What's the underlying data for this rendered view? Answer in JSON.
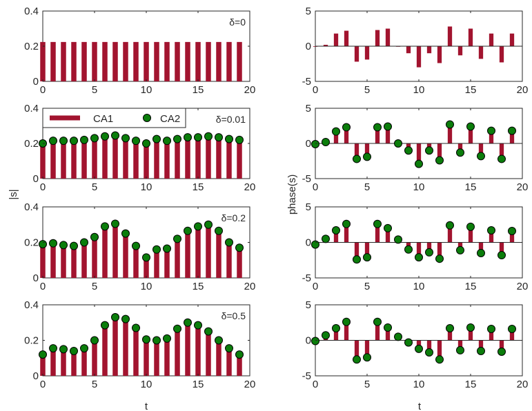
{
  "figure": {
    "left_ylabel": "|s|",
    "right_ylabel": "phase(s)",
    "xlabel": "t",
    "legend": {
      "labels": [
        "CA1",
        "CA2"
      ]
    },
    "colors": {
      "bar": "#A2142F",
      "marker_fill": "#0B7D0B",
      "marker_edge": "#000000",
      "axis": "#262626"
    }
  },
  "chart_data": [
    {
      "type": "bar",
      "panel": "magnitude-delta-0",
      "annotation": "δ=0",
      "x": [
        0,
        1,
        2,
        3,
        4,
        5,
        6,
        7,
        8,
        9,
        10,
        11,
        12,
        13,
        14,
        15,
        16,
        17,
        18,
        19
      ],
      "xlim": [
        0,
        20
      ],
      "ylim": [
        0,
        0.4
      ],
      "xticks": [
        0,
        5,
        10,
        15,
        20
      ],
      "yticks": [
        0,
        0.2,
        0.4
      ],
      "series": [
        {
          "name": "CA1",
          "kind": "bar",
          "values": [
            0.224,
            0.224,
            0.224,
            0.224,
            0.224,
            0.224,
            0.224,
            0.224,
            0.224,
            0.224,
            0.224,
            0.224,
            0.224,
            0.224,
            0.224,
            0.224,
            0.224,
            0.224,
            0.224,
            0.224
          ]
        }
      ]
    },
    {
      "type": "bar",
      "panel": "phase-delta-0",
      "x": [
        0,
        1,
        2,
        3,
        4,
        5,
        6,
        7,
        8,
        9,
        10,
        11,
        12,
        13,
        14,
        15,
        16,
        17,
        18,
        19
      ],
      "xlim": [
        0,
        20
      ],
      "ylim": [
        -5,
        5
      ],
      "xticks": [
        0,
        5,
        10,
        15,
        20
      ],
      "yticks": [
        -5,
        0,
        5
      ],
      "series": [
        {
          "name": "CA1",
          "kind": "bar",
          "values": [
            0,
            0.2,
            1.8,
            2.2,
            -2.2,
            -1.9,
            2.3,
            2.5,
            0,
            -1,
            -3,
            -1,
            -2.4,
            2.8,
            -1.3,
            2.5,
            -1.8,
            1.8,
            -2.3,
            1.8
          ]
        }
      ]
    },
    {
      "type": "bar",
      "panel": "magnitude-delta-0.01",
      "annotation": "δ=0.01",
      "x": [
        0,
        1,
        2,
        3,
        4,
        5,
        6,
        7,
        8,
        9,
        10,
        11,
        12,
        13,
        14,
        15,
        16,
        17,
        18,
        19
      ],
      "xlim": [
        0,
        20
      ],
      "ylim": [
        0,
        0.4
      ],
      "xticks": [
        0,
        5,
        10,
        15,
        20
      ],
      "yticks": [
        0,
        0.2,
        0.4
      ],
      "series": [
        {
          "name": "CA1",
          "kind": "bar",
          "values": [
            0.2,
            0.215,
            0.215,
            0.215,
            0.22,
            0.23,
            0.24,
            0.245,
            0.23,
            0.215,
            0.2,
            0.225,
            0.215,
            0.225,
            0.235,
            0.235,
            0.24,
            0.235,
            0.225,
            0.22
          ]
        },
        {
          "name": "CA2",
          "kind": "marker",
          "values": [
            0.2,
            0.215,
            0.215,
            0.215,
            0.22,
            0.23,
            0.24,
            0.245,
            0.23,
            0.215,
            0.2,
            0.225,
            0.215,
            0.225,
            0.235,
            0.235,
            0.24,
            0.235,
            0.225,
            0.22
          ]
        }
      ]
    },
    {
      "type": "bar",
      "panel": "phase-delta-0.01",
      "x": [
        0,
        1,
        2,
        3,
        4,
        5,
        6,
        7,
        8,
        9,
        10,
        11,
        12,
        13,
        14,
        15,
        16,
        17,
        18,
        19
      ],
      "xlim": [
        0,
        20
      ],
      "ylim": [
        -5,
        5
      ],
      "xticks": [
        0,
        5,
        10,
        15,
        20
      ],
      "yticks": [
        -5,
        0,
        5
      ],
      "series": [
        {
          "name": "CA1",
          "kind": "bar",
          "values": [
            -0.1,
            0.2,
            1.7,
            2.3,
            -2.2,
            -1.9,
            2.3,
            2.4,
            0,
            -1,
            -2.9,
            -1,
            -2.4,
            2.7,
            -1.3,
            2.4,
            -1.8,
            1.8,
            -2.2,
            1.8
          ]
        },
        {
          "name": "CA2",
          "kind": "marker",
          "values": [
            -0.1,
            0.2,
            1.7,
            2.3,
            -2.2,
            -1.9,
            2.3,
            2.4,
            0,
            -1,
            -2.9,
            -1,
            -2.4,
            2.7,
            -1.3,
            2.4,
            -1.8,
            1.8,
            -2.2,
            1.8
          ]
        }
      ]
    },
    {
      "type": "bar",
      "panel": "magnitude-delta-0.2",
      "annotation": "δ=0.2",
      "x": [
        0,
        1,
        2,
        3,
        4,
        5,
        6,
        7,
        8,
        9,
        10,
        11,
        12,
        13,
        14,
        15,
        16,
        17,
        18,
        19
      ],
      "xlim": [
        0,
        20
      ],
      "ylim": [
        0,
        0.4
      ],
      "xticks": [
        0,
        5,
        10,
        15,
        20
      ],
      "yticks": [
        0,
        0.2,
        0.4
      ],
      "series": [
        {
          "name": "CA1",
          "kind": "bar",
          "values": [
            0.19,
            0.195,
            0.185,
            0.18,
            0.2,
            0.23,
            0.29,
            0.305,
            0.25,
            0.18,
            0.115,
            0.16,
            0.165,
            0.22,
            0.265,
            0.29,
            0.3,
            0.265,
            0.2,
            0.17
          ]
        },
        {
          "name": "CA2",
          "kind": "marker",
          "values": [
            0.19,
            0.195,
            0.185,
            0.18,
            0.2,
            0.23,
            0.29,
            0.305,
            0.25,
            0.18,
            0.115,
            0.16,
            0.165,
            0.22,
            0.265,
            0.29,
            0.3,
            0.265,
            0.2,
            0.17
          ]
        }
      ]
    },
    {
      "type": "bar",
      "panel": "phase-delta-0.2",
      "x": [
        0,
        1,
        2,
        3,
        4,
        5,
        6,
        7,
        8,
        9,
        10,
        11,
        12,
        13,
        14,
        15,
        16,
        17,
        18,
        19
      ],
      "xlim": [
        0,
        20
      ],
      "ylim": [
        -5,
        5
      ],
      "xticks": [
        0,
        5,
        10,
        15,
        20
      ],
      "yticks": [
        -5,
        0,
        5
      ],
      "series": [
        {
          "name": "CA1",
          "kind": "bar",
          "values": [
            -0.3,
            0.5,
            1.7,
            2.6,
            -2.4,
            -2.1,
            2.6,
            2,
            0.4,
            -1,
            -2.1,
            -1.4,
            -2.3,
            2.4,
            -1.1,
            2.2,
            -1.5,
            1.7,
            -1.8,
            1.6
          ]
        },
        {
          "name": "CA2",
          "kind": "marker",
          "values": [
            -0.3,
            0.5,
            1.7,
            2.6,
            -2.4,
            -2.1,
            2.6,
            2,
            0.4,
            -1,
            -2.1,
            -1.4,
            -2.3,
            2.4,
            -1.1,
            2.2,
            -1.5,
            1.7,
            -1.8,
            1.6
          ]
        }
      ]
    },
    {
      "type": "bar",
      "panel": "magnitude-delta-0.5",
      "annotation": "δ=0.5",
      "x": [
        0,
        1,
        2,
        3,
        4,
        5,
        6,
        7,
        8,
        9,
        10,
        11,
        12,
        13,
        14,
        15,
        16,
        17,
        18,
        19
      ],
      "xlim": [
        0,
        20
      ],
      "ylim": [
        0,
        0.4
      ],
      "xticks": [
        0,
        5,
        10,
        15,
        20
      ],
      "yticks": [
        0,
        0.2,
        0.4
      ],
      "series": [
        {
          "name": "CA1",
          "kind": "bar",
          "values": [
            0.12,
            0.155,
            0.15,
            0.14,
            0.155,
            0.2,
            0.285,
            0.33,
            0.32,
            0.27,
            0.205,
            0.2,
            0.21,
            0.265,
            0.3,
            0.285,
            0.25,
            0.2,
            0.155,
            0.12
          ]
        },
        {
          "name": "CA2",
          "kind": "marker",
          "values": [
            0.12,
            0.155,
            0.15,
            0.14,
            0.155,
            0.2,
            0.285,
            0.33,
            0.32,
            0.27,
            0.205,
            0.2,
            0.21,
            0.265,
            0.3,
            0.285,
            0.25,
            0.2,
            0.155,
            0.12
          ]
        }
      ]
    },
    {
      "type": "bar",
      "panel": "phase-delta-0.5",
      "x": [
        0,
        1,
        2,
        3,
        4,
        5,
        6,
        7,
        8,
        9,
        10,
        11,
        12,
        13,
        14,
        15,
        16,
        17,
        18,
        19
      ],
      "xlim": [
        0,
        20
      ],
      "ylim": [
        -5,
        5
      ],
      "xticks": [
        0,
        5,
        10,
        15,
        20
      ],
      "yticks": [
        -5,
        0,
        5
      ],
      "series": [
        {
          "name": "CA1",
          "kind": "bar",
          "values": [
            -0.1,
            0.7,
            1.7,
            2.6,
            -2.7,
            -2.4,
            2.6,
            1.8,
            0.5,
            -0.3,
            -1.2,
            -1.7,
            -2.7,
            1.7,
            -1.4,
            1.8,
            -1.5,
            1.6,
            -1.6,
            1.6
          ]
        },
        {
          "name": "CA2",
          "kind": "marker",
          "values": [
            -0.1,
            0.7,
            1.7,
            2.6,
            -2.7,
            -2.4,
            2.6,
            1.8,
            0.5,
            -0.3,
            -1.2,
            -1.7,
            -2.7,
            1.7,
            -1.4,
            1.8,
            -1.5,
            1.6,
            -1.6,
            1.6
          ]
        }
      ]
    }
  ]
}
